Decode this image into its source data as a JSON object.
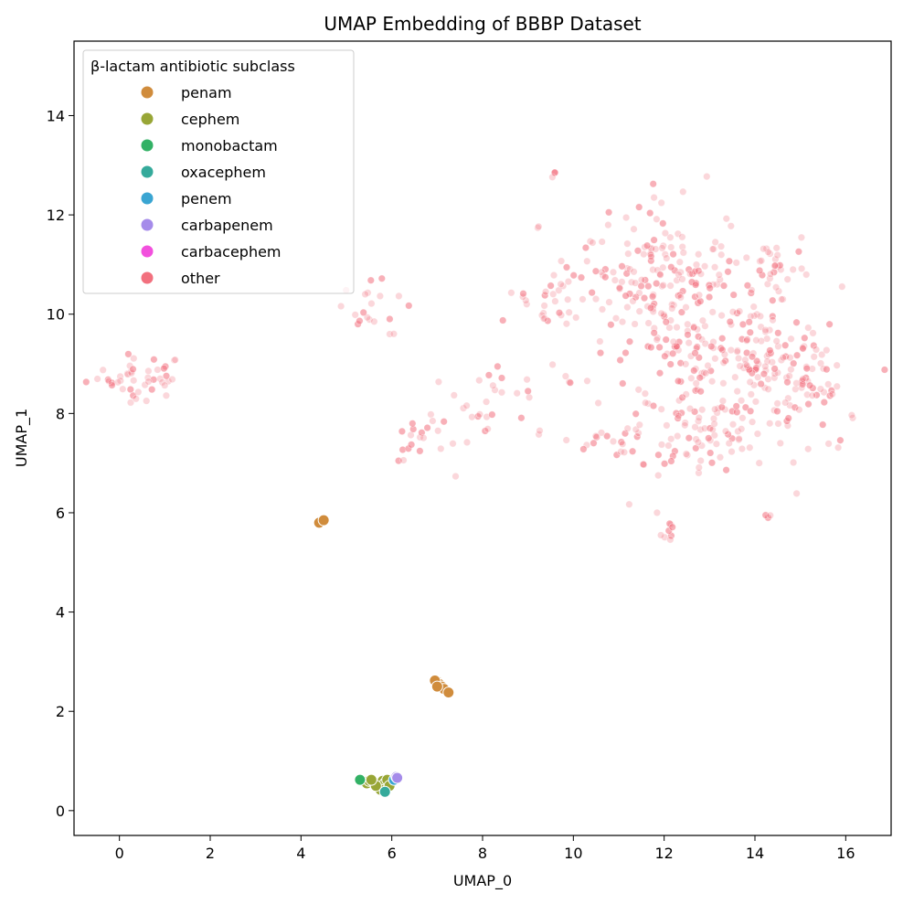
{
  "chart_data": {
    "type": "scatter",
    "title": "UMAP Embedding of BBBP Dataset",
    "xlabel": "UMAP_0",
    "ylabel": "UMAP_1",
    "xlim": [
      -1,
      17
    ],
    "ylim": [
      -0.5,
      15.5
    ],
    "xticks": [
      0,
      2,
      4,
      6,
      8,
      10,
      12,
      14,
      16
    ],
    "yticks": [
      0,
      2,
      4,
      6,
      8,
      10,
      12,
      14
    ],
    "legend_title": "β-lactam antibiotic subclass",
    "legend_position": "upper-left",
    "grid": false,
    "series": [
      {
        "name": "penam",
        "color": "#d08c3c",
        "points": [
          [
            4.4,
            5.8
          ],
          [
            4.5,
            5.85
          ],
          [
            7.0,
            2.6
          ],
          [
            7.05,
            2.55
          ],
          [
            7.1,
            2.5
          ],
          [
            7.15,
            2.45
          ],
          [
            7.25,
            2.38
          ],
          [
            6.95,
            2.62
          ],
          [
            7.0,
            2.5
          ]
        ]
      },
      {
        "name": "cephem",
        "color": "#98a636",
        "points": [
          [
            5.45,
            0.55
          ],
          [
            5.5,
            0.6
          ],
          [
            5.6,
            0.58
          ],
          [
            5.7,
            0.52
          ],
          [
            5.8,
            0.6
          ],
          [
            5.85,
            0.55
          ],
          [
            5.75,
            0.42
          ],
          [
            5.65,
            0.5
          ],
          [
            5.55,
            0.62
          ],
          [
            5.9,
            0.62
          ],
          [
            5.95,
            0.5
          ]
        ]
      },
      {
        "name": "monobactam",
        "color": "#32b165",
        "points": [
          [
            5.3,
            0.62
          ]
        ]
      },
      {
        "name": "oxacephem",
        "color": "#35aa9b",
        "points": [
          [
            5.85,
            0.38
          ]
        ]
      },
      {
        "name": "penem",
        "color": "#3aa5d2",
        "points": [
          [
            6.05,
            0.62
          ]
        ]
      },
      {
        "name": "carbapenem",
        "color": "#a58bea",
        "points": [
          [
            6.1,
            0.68
          ],
          [
            6.12,
            0.66
          ]
        ]
      },
      {
        "name": "carbacephem",
        "color": "#f250dd",
        "points": []
      },
      {
        "name": "other",
        "color": "#f2707e",
        "points": []
      }
    ],
    "other_clusters": [
      {
        "cx": 0.4,
        "cy": 8.75,
        "sx": 0.55,
        "sy": 0.22,
        "n": 45
      },
      {
        "cx": 5.5,
        "cy": 10.1,
        "sx": 0.35,
        "sy": 0.35,
        "n": 18
      },
      {
        "cx": 6.6,
        "cy": 7.4,
        "sx": 0.4,
        "sy": 0.3,
        "n": 20
      },
      {
        "cx": 7.8,
        "cy": 8.0,
        "sx": 0.5,
        "sy": 0.25,
        "n": 14
      },
      {
        "cx": 8.6,
        "cy": 8.6,
        "sx": 0.4,
        "sy": 0.2,
        "n": 10
      },
      {
        "cx": 9.5,
        "cy": 10.3,
        "sx": 0.5,
        "sy": 0.35,
        "n": 25
      },
      {
        "cx": 10.9,
        "cy": 7.4,
        "sx": 0.8,
        "sy": 0.25,
        "n": 28
      },
      {
        "cx": 11.5,
        "cy": 10.8,
        "sx": 0.9,
        "sy": 0.6,
        "n": 120
      },
      {
        "cx": 12.6,
        "cy": 9.3,
        "sx": 1.3,
        "sy": 1.1,
        "n": 200
      },
      {
        "cx": 12.9,
        "cy": 7.5,
        "sx": 0.6,
        "sy": 0.35,
        "n": 45
      },
      {
        "cx": 14.4,
        "cy": 10.9,
        "sx": 0.35,
        "sy": 0.35,
        "n": 30
      },
      {
        "cx": 15.3,
        "cy": 8.7,
        "sx": 0.4,
        "sy": 0.5,
        "n": 50
      },
      {
        "cx": 14.0,
        "cy": 9.0,
        "sx": 0.6,
        "sy": 0.6,
        "n": 70
      },
      {
        "cx": 12.1,
        "cy": 5.5,
        "sx": 0.1,
        "sy": 0.25,
        "n": 8
      },
      {
        "cx": 14.3,
        "cy": 5.95,
        "sx": 0.05,
        "sy": 0.05,
        "n": 3
      },
      {
        "cx": 9.55,
        "cy": 12.8,
        "sx": 0.05,
        "sy": 0.05,
        "n": 3
      },
      {
        "cx": 11.8,
        "cy": 12.3,
        "sx": 0.15,
        "sy": 0.25,
        "n": 6
      },
      {
        "cx": 9.2,
        "cy": 11.75,
        "sx": 0.03,
        "sy": 0.03,
        "n": 2
      },
      {
        "cx": 6.0,
        "cy": 9.55,
        "sx": 0.03,
        "sy": 0.03,
        "n": 2
      }
    ]
  }
}
